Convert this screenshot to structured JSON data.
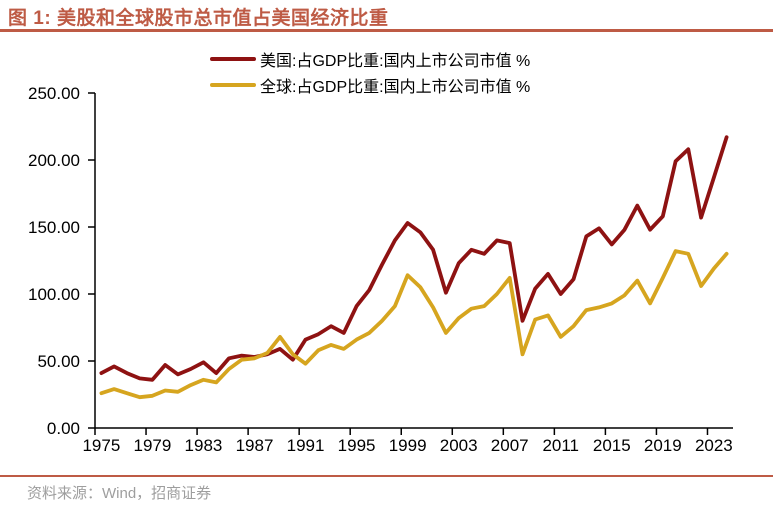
{
  "title": {
    "label": "图 1: 美股和全球股市总市值占美国经济比重"
  },
  "footer": {
    "source": "资料来源：Wind，招商证券"
  },
  "colors": {
    "accent": "#BE5B45",
    "us_line": "#8E1212",
    "global_line": "#D6A51F",
    "axis": "#000000",
    "source_text": "#9E9E9E",
    "background": "#FFFFFF"
  },
  "chart_data": {
    "type": "line",
    "title": "美股和全球股市总市值占美国经济比重",
    "grid": false,
    "legend_position": "top-center",
    "ylim": [
      0,
      250
    ],
    "y_ticks": [
      0,
      50,
      100,
      150,
      200,
      250
    ],
    "y_tick_labels": [
      "0.00",
      "50.00",
      "100.00",
      "150.00",
      "200.00",
      "250.00"
    ],
    "x": [
      1975,
      1976,
      1977,
      1978,
      1979,
      1980,
      1981,
      1982,
      1983,
      1984,
      1985,
      1986,
      1987,
      1988,
      1989,
      1990,
      1991,
      1992,
      1993,
      1994,
      1995,
      1996,
      1997,
      1998,
      1999,
      2000,
      2001,
      2002,
      2003,
      2004,
      2005,
      2006,
      2007,
      2008,
      2009,
      2010,
      2011,
      2012,
      2013,
      2014,
      2015,
      2016,
      2017,
      2018,
      2019,
      2020,
      2021,
      2022,
      2023,
      2024
    ],
    "x_tick_labels": [
      "1975",
      "1979",
      "1983",
      "1987",
      "1991",
      "1995",
      "1999",
      "2003",
      "2007",
      "2011",
      "2015",
      "2019",
      "2023"
    ],
    "series": [
      {
        "name": "美国:占GDP比重:国内上市公司市值 %",
        "color": "#8E1212",
        "values": [
          41,
          46,
          41,
          37,
          36,
          47,
          40,
          44,
          49,
          41,
          52,
          54,
          53,
          55,
          59,
          51,
          66,
          70,
          76,
          71,
          91,
          103,
          122,
          140,
          153,
          146,
          133,
          101,
          123,
          133,
          130,
          140,
          138,
          80,
          104,
          115,
          100,
          111,
          143,
          149,
          137,
          148,
          166,
          148,
          158,
          199,
          208,
          157,
          187,
          217
        ]
      },
      {
        "name": "全球:占GDP比重:国内上市公司市值 %",
        "color": "#D6A51F",
        "values": [
          26,
          29,
          26,
          23,
          24,
          28,
          27,
          32,
          36,
          34,
          44,
          51,
          52,
          56,
          68,
          55,
          48,
          58,
          62,
          59,
          66,
          71,
          80,
          91,
          114,
          105,
          90,
          71,
          82,
          89,
          91,
          100,
          112,
          55,
          81,
          84,
          68,
          76,
          88,
          90,
          93,
          99,
          110,
          93,
          112,
          132,
          130,
          106,
          119,
          130
        ]
      }
    ]
  }
}
